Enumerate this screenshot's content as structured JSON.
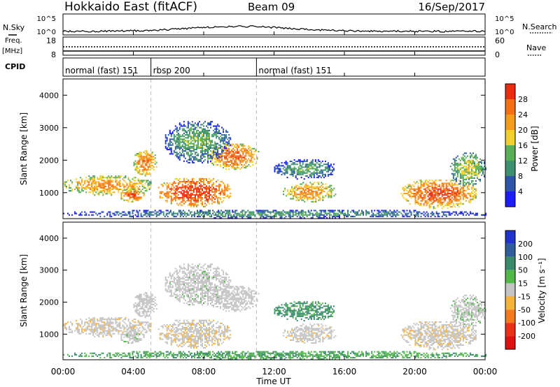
{
  "header": {
    "title": "Hokkaido East (fitACF)",
    "beam": "Beam 09",
    "date": "16/Sep/2017"
  },
  "strip_labels": {
    "nsky": "N.Sky",
    "nsearch": "N.Search",
    "freq": "Freq.",
    "freq_unit": "[MHz]",
    "nave": "Nave",
    "cpid": "CPID"
  },
  "strip_ticks": {
    "noise_left": [
      "10^5",
      "10^0"
    ],
    "noise_right": [
      "10^5",
      "10^0"
    ],
    "freq_left": [
      "18",
      "8"
    ],
    "nave_right": [
      "60",
      "0"
    ]
  },
  "cpid_segments": [
    {
      "label": "normal (fast) 151",
      "start_hr": 0.0,
      "end_hr": 5.0
    },
    {
      "label": "rbsp 200",
      "start_hr": 5.0,
      "end_hr": 11.0
    },
    {
      "label": "normal (fast) 151",
      "start_hr": 11.0,
      "end_hr": 24.0
    }
  ],
  "x_axis": {
    "label": "Time UT",
    "ticks": [
      "00:00",
      "04:00",
      "08:00",
      "12:00",
      "16:00",
      "20:00",
      "00:00"
    ],
    "tick_hours": [
      0,
      4,
      8,
      12,
      16,
      20,
      24
    ]
  },
  "y_axis": {
    "label": "Slant Range [km]",
    "ticks": [
      "1000",
      "2000",
      "3000",
      "4000"
    ],
    "tick_values": [
      1000,
      2000,
      3000,
      4000
    ],
    "range": [
      200,
      4500
    ]
  },
  "power_colorbar": {
    "label": "Power [dB]",
    "ticks": [
      "4",
      "8",
      "12",
      "16",
      "20",
      "24",
      "28"
    ],
    "tick_values": [
      4,
      8,
      12,
      16,
      20,
      24,
      28
    ],
    "range": [
      0,
      32
    ],
    "colors": [
      "#1c1cff",
      "#2d55a8",
      "#3f9070",
      "#5aae55",
      "#f2d02a",
      "#f59c1c",
      "#f47014",
      "#ee2a10"
    ]
  },
  "velocity_colorbar": {
    "label": "Velocity [m s⁻¹]",
    "ticks": [
      "200",
      "100",
      "50",
      "15",
      "-15",
      "-50",
      "-100",
      "-200"
    ],
    "colors": [
      "#2233cc",
      "#2f5f9a",
      "#3b8a6c",
      "#52b84a",
      "#c4c4c4",
      "#f4b43a",
      "#f47a20",
      "#ee3018",
      "#e01010"
    ]
  },
  "chart_data": {
    "type": "heatmap",
    "panels": [
      {
        "name": "power",
        "quantity": "Power",
        "unit": "dB"
      },
      {
        "name": "velocity",
        "quantity": "Velocity",
        "unit": "m s-1"
      }
    ],
    "xlabel": "Time UT",
    "ylabel": "Slant Range [km]",
    "xlim_hours": [
      0,
      24
    ],
    "ylim_km": [
      200,
      4500
    ],
    "echo_regions": [
      {
        "t0": 0.0,
        "t1": 5.0,
        "r0": 900,
        "r1": 1500,
        "power_db": 24,
        "velocity": -5
      },
      {
        "t0": 3.2,
        "t1": 4.6,
        "r0": 700,
        "r1": 1100,
        "power_db": 28,
        "velocity": 5
      },
      {
        "t0": 4.0,
        "t1": 5.3,
        "r0": 1500,
        "r1": 2300,
        "power_db": 26,
        "velocity": 0
      },
      {
        "t0": 5.4,
        "t1": 9.5,
        "r0": 550,
        "r1": 1450,
        "power_db": 30,
        "velocity": -8
      },
      {
        "t0": 8.2,
        "t1": 11.1,
        "r0": 1700,
        "r1": 2500,
        "power_db": 27,
        "velocity": 0
      },
      {
        "t0": 5.8,
        "t1": 9.5,
        "r0": 1900,
        "r1": 3200,
        "power_db": 14,
        "velocity": 2
      },
      {
        "t0": 12.5,
        "t1": 15.5,
        "r0": 700,
        "r1": 1300,
        "power_db": 24,
        "velocity": -4
      },
      {
        "t0": 12.0,
        "t1": 15.5,
        "r0": 1400,
        "r1": 2000,
        "power_db": 13,
        "velocity": 40
      },
      {
        "t0": 19.2,
        "t1": 23.5,
        "r0": 500,
        "r1": 1400,
        "power_db": 28,
        "velocity": -6
      },
      {
        "t0": 22.0,
        "t1": 24.0,
        "r0": 1200,
        "r1": 2200,
        "power_db": 18,
        "velocity": 5
      },
      {
        "t0": 0.0,
        "t1": 24.0,
        "r0": 200,
        "r1": 450,
        "power_db": 12,
        "velocity": 30
      }
    ]
  }
}
